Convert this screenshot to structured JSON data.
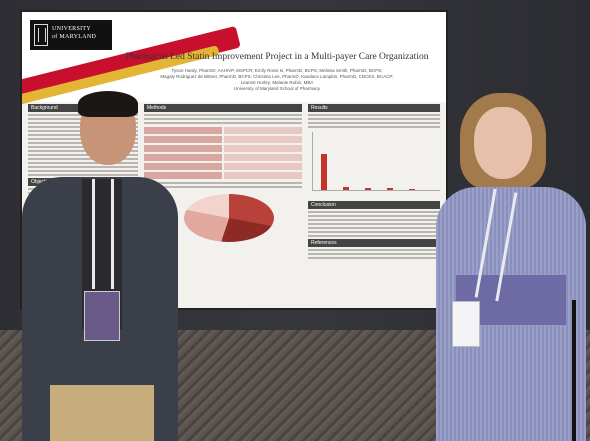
{
  "poster": {
    "university_line1": "UNIVERSITY",
    "university_line2": "of MARYLAND",
    "title": "Pharmacist Led Statin Improvement Project in a Multi-payer Care Organization",
    "authors_line1": "Tyson Hardy, PharmD, AAHIVP, MSPCR; Emily Rossi Is, PharmD, BCPS; Melissa Smith, PharmD, BCPS;",
    "authors_line2": "Magaly Rodriguez de Bittner, PharmD, BCPS; Christina Lee, PharmD, Kandace Lampkin, PharmD, CDCES, BCACP;",
    "authors_line3": "Leanne Hurley; Melanie Rubin, MBA",
    "affiliation": "University of Maryland School of Pharmacy",
    "sections": {
      "background": "Background",
      "objectives": "Objectives",
      "methods": "Methods",
      "results": "Results",
      "conclusion": "Conclusion",
      "references": "References"
    }
  },
  "colors": {
    "umd_red": "#c8102e",
    "umd_gold": "#e4b434",
    "section_header": "#444444"
  }
}
